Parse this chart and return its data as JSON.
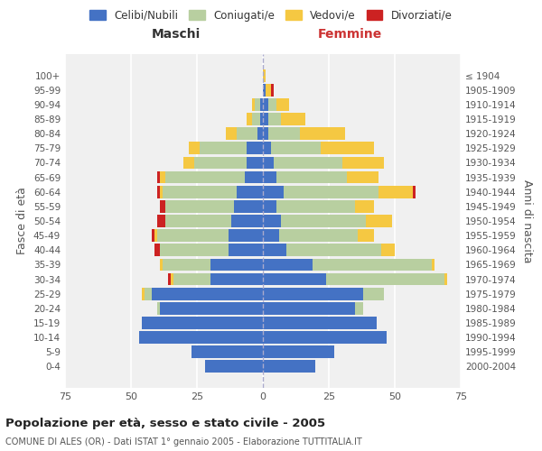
{
  "age_groups": [
    "100+",
    "95-99",
    "90-94",
    "85-89",
    "80-84",
    "75-79",
    "70-74",
    "65-69",
    "60-64",
    "55-59",
    "50-54",
    "45-49",
    "40-44",
    "35-39",
    "30-34",
    "25-29",
    "20-24",
    "15-19",
    "10-14",
    "5-9",
    "0-4"
  ],
  "birth_years": [
    "≤ 1904",
    "1905-1909",
    "1910-1914",
    "1915-1919",
    "1920-1924",
    "1925-1929",
    "1930-1934",
    "1935-1939",
    "1940-1944",
    "1945-1949",
    "1950-1954",
    "1955-1959",
    "1960-1964",
    "1965-1969",
    "1970-1974",
    "1975-1979",
    "1980-1984",
    "1985-1989",
    "1990-1994",
    "1995-1999",
    "2000-2004"
  ],
  "colors": {
    "celibi": "#4472c4",
    "coniugati": "#b8cfa0",
    "vedovi": "#f5c842",
    "divorziati": "#cc2222"
  },
  "maschi": {
    "celibi": [
      0,
      0,
      1,
      1,
      2,
      6,
      6,
      7,
      10,
      11,
      12,
      13,
      13,
      20,
      20,
      42,
      39,
      46,
      47,
      27,
      22
    ],
    "coniugati": [
      0,
      0,
      2,
      3,
      8,
      18,
      20,
      30,
      28,
      26,
      25,
      27,
      26,
      18,
      14,
      3,
      1,
      0,
      0,
      0,
      0
    ],
    "vedovi": [
      0,
      0,
      1,
      2,
      4,
      4,
      4,
      2,
      1,
      0,
      0,
      1,
      0,
      1,
      1,
      1,
      0,
      0,
      0,
      0,
      0
    ],
    "divorziati": [
      0,
      0,
      0,
      0,
      0,
      0,
      0,
      1,
      1,
      2,
      3,
      1,
      2,
      0,
      1,
      0,
      0,
      0,
      0,
      0,
      0
    ]
  },
  "femmine": {
    "celibi": [
      0,
      1,
      2,
      2,
      2,
      3,
      4,
      5,
      8,
      5,
      7,
      6,
      9,
      19,
      24,
      38,
      35,
      43,
      47,
      27,
      20
    ],
    "coniugati": [
      0,
      0,
      3,
      5,
      12,
      19,
      26,
      27,
      36,
      30,
      32,
      30,
      36,
      45,
      45,
      8,
      3,
      0,
      0,
      0,
      0
    ],
    "vedovi": [
      1,
      2,
      5,
      9,
      17,
      20,
      16,
      12,
      13,
      7,
      10,
      6,
      5,
      1,
      1,
      0,
      0,
      0,
      0,
      0,
      0
    ],
    "divorziati": [
      0,
      1,
      0,
      0,
      0,
      0,
      0,
      0,
      1,
      0,
      0,
      0,
      0,
      0,
      0,
      0,
      0,
      0,
      0,
      0,
      0
    ]
  },
  "xlim": 75,
  "title": "Popolazione per età, sesso e stato civile - 2005",
  "subtitle": "COMUNE DI ALES (OR) - Dati ISTAT 1° gennaio 2005 - Elaborazione TUTTITALIA.IT",
  "ylabel_left": "Fasce di età",
  "ylabel_right": "Anni di nascita",
  "xlabel_left": "Maschi",
  "xlabel_right": "Femmine",
  "legend_labels": [
    "Celibi/Nubili",
    "Coniugati/e",
    "Vedovi/e",
    "Divorziati/e"
  ],
  "bg_color": "#f0f0f0",
  "grid_color": "#ffffff",
  "bar_height": 0.85,
  "maschi_color": "#333333",
  "femmine_color": "#cc3333"
}
